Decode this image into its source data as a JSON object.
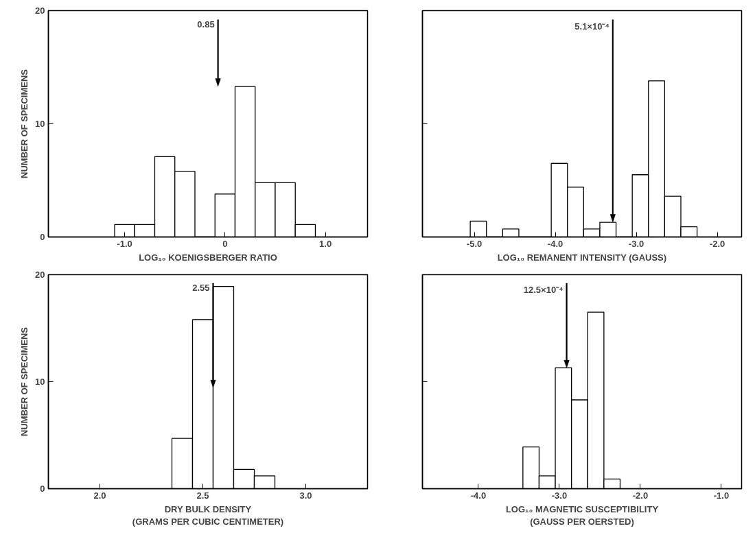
{
  "chart_data": [
    {
      "type": "histogram",
      "xlabel": "LOG₁₀ KOENIGSBERGER RATIO",
      "ylabel": "NUMBER OF SPECIMENS",
      "bins": [
        -1.1,
        -0.9,
        -0.7,
        -0.5,
        -0.3,
        -0.1,
        0.1,
        0.3,
        0.5,
        0.7,
        0.9
      ],
      "values": [
        1.1,
        1.1,
        7.1,
        5.8,
        0,
        3.8,
        13.3,
        4.8,
        4.8,
        1.1
      ],
      "color": "#ffffff",
      "xlim": [
        -1.76,
        1.42
      ],
      "ylim": [
        0,
        20
      ],
      "xticks": [
        {
          "value": -1.0,
          "label": "-1.0"
        },
        0,
        {
          "value": 1.0,
          "label": "1.0"
        }
      ],
      "yticks": [
        0,
        10,
        20
      ],
      "ref_lines": [
        {
          "axis": "x",
          "value": -0.07
        }
      ],
      "annotations": [
        "0.85"
      ],
      "grid": false
    },
    {
      "type": "histogram",
      "xlabel": "LOG₁₀ REMANENT INTENSITY (GAUSS)",
      "bins": [
        -5.05,
        -4.85,
        -4.65,
        -4.45,
        -4.25,
        -4.05,
        -3.85,
        -3.65,
        -3.45,
        -3.25,
        -3.05,
        -2.85,
        -2.65,
        -2.45,
        -2.25
      ],
      "values": [
        1.4,
        0,
        0.7,
        0,
        0,
        6.5,
        4.4,
        0.7,
        1.3,
        0,
        5.5,
        13.8,
        3.6,
        0.9
      ],
      "color": "#ffffff",
      "xlim": [
        -5.64,
        -1.7
      ],
      "ylim": [
        0,
        20
      ],
      "xticks": [
        {
          "value": -5.0,
          "label": "-5.0"
        },
        {
          "value": -4.0,
          "label": "-4.0"
        },
        {
          "value": -3.0,
          "label": "-3.0"
        },
        {
          "value": -2.0,
          "label": "-2.0"
        }
      ],
      "yticks": [
        {
          "value": 0,
          "label": null
        },
        {
          "value": 10,
          "label": null
        },
        {
          "value": 20,
          "label": null
        }
      ],
      "tick_labels": "x",
      "ref_lines": [
        {
          "axis": "x",
          "value": -3.29
        }
      ],
      "annotations": [
        "5.1×10⁻⁴"
      ],
      "grid": false
    },
    {
      "type": "histogram",
      "xlabel": "DRY BULK DENSITY\n(GRAMS PER CUBIC CENTIMETER)",
      "ylabel": "NUMBER OF SPECIMENS",
      "bins": [
        2.35,
        2.45,
        2.55,
        2.65,
        2.75,
        2.85
      ],
      "values": [
        4.7,
        15.8,
        18.9,
        1.8,
        1.2
      ],
      "color": "#ffffff",
      "xlim": [
        1.75,
        3.3
      ],
      "ylim": [
        0,
        20
      ],
      "xticks": [
        {
          "value": 2.0,
          "label": "2.0"
        },
        {
          "value": 2.5,
          "label": "2.5"
        },
        {
          "value": 3.0,
          "label": "3.0"
        }
      ],
      "yticks": [
        0,
        10,
        20
      ],
      "ref_lines": [
        {
          "axis": "x",
          "value": 2.55
        }
      ],
      "annotations": [
        "2.55"
      ],
      "grid": false
    },
    {
      "type": "histogram",
      "xlabel": "LOG₁₀ MAGNETIC SUSCEPTIBILITY\n(GAUSS PER OERSTED)",
      "bins": [
        -3.45,
        -3.25,
        -3.05,
        -2.85,
        -2.65,
        -2.45,
        -2.25
      ],
      "values": [
        3.9,
        1.2,
        11.3,
        8.3,
        16.5,
        0.9
      ],
      "color": "#ffffff",
      "xlim": [
        -4.69,
        -0.75
      ],
      "ylim": [
        0,
        20
      ],
      "xticks": [
        {
          "value": -4.0,
          "label": "-4.0"
        },
        {
          "value": -3.0,
          "label": "-3.0"
        },
        {
          "value": -2.0,
          "label": "-2.0"
        },
        {
          "value": -1.0,
          "label": "-1.0"
        }
      ],
      "yticks": [
        {
          "value": 0,
          "label": null
        },
        {
          "value": 10,
          "label": null
        },
        {
          "value": 20,
          "label": null
        }
      ],
      "tick_labels": "x",
      "ref_lines": [
        {
          "axis": "x",
          "value": -2.91
        }
      ],
      "annotations": [
        "12.5×10⁻⁴"
      ],
      "grid": false
    }
  ]
}
